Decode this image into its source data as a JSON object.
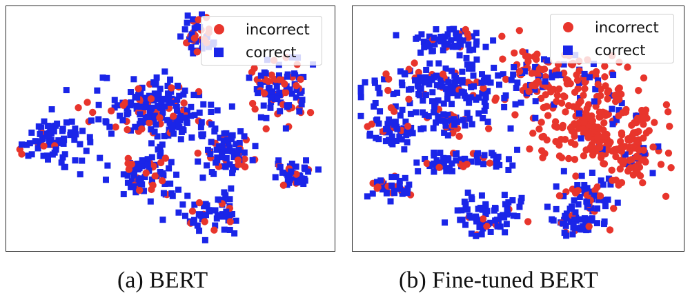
{
  "colors": {
    "incorrect": "#e8352c",
    "correct": "#1a25e8"
  },
  "chart_data": [
    {
      "type": "scatter",
      "title": "",
      "caption": "(a) BERT",
      "legend": {
        "placement": "top-right",
        "entries": [
          {
            "label": "incorrect",
            "marker": "circle",
            "color": "#e8352c"
          },
          {
            "label": "correct",
            "marker": "square",
            "color": "#1a25e8"
          }
        ]
      },
      "grid": false,
      "axes_visible": false,
      "xlim": [
        0,
        100
      ],
      "ylim": [
        0,
        100
      ],
      "clusters": [
        {
          "cx": 59,
          "cy": 90,
          "sx": 2.5,
          "sy": 4.5,
          "n": 45,
          "incorrect_frac": 0.45
        },
        {
          "cx": 45,
          "cy": 57,
          "sx": 9,
          "sy": 7,
          "n": 190,
          "incorrect_frac": 0.22
        },
        {
          "cx": 85,
          "cy": 66,
          "sx": 5,
          "sy": 7,
          "n": 100,
          "incorrect_frac": 0.38
        },
        {
          "cx": 13,
          "cy": 43,
          "sx": 5,
          "sy": 6,
          "n": 80,
          "incorrect_frac": 0.15
        },
        {
          "cx": 42,
          "cy": 30,
          "sx": 5,
          "sy": 5,
          "n": 80,
          "incorrect_frac": 0.3
        },
        {
          "cx": 68,
          "cy": 39,
          "sx": 4.5,
          "sy": 6,
          "n": 75,
          "incorrect_frac": 0.2
        },
        {
          "cx": 90,
          "cy": 30,
          "sx": 3.5,
          "sy": 3,
          "n": 45,
          "incorrect_frac": 0.25
        },
        {
          "cx": 62,
          "cy": 12,
          "sx": 4.5,
          "sy": 5,
          "n": 60,
          "incorrect_frac": 0.15
        }
      ]
    },
    {
      "type": "scatter",
      "title": "",
      "caption": "(b) Fine-tuned BERT",
      "legend": {
        "placement": "top-right",
        "entries": [
          {
            "label": "incorrect",
            "marker": "circle",
            "color": "#e8352c"
          },
          {
            "label": "correct",
            "marker": "square",
            "color": "#1a25e8"
          }
        ]
      },
      "grid": false,
      "axes_visible": false,
      "xlim": [
        0,
        100
      ],
      "ylim": [
        0,
        100
      ],
      "clusters": [
        {
          "cx": 29,
          "cy": 88,
          "sx": 6,
          "sy": 3,
          "n": 60,
          "incorrect_frac": 0.15
        },
        {
          "cx": 28,
          "cy": 68,
          "sx": 13,
          "sy": 5,
          "n": 160,
          "incorrect_frac": 0.1
        },
        {
          "cx": 61,
          "cy": 72,
          "sx": 9,
          "sy": 6,
          "n": 110,
          "incorrect_frac": 0.75
        },
        {
          "cx": 72,
          "cy": 52,
          "sx": 11,
          "sy": 11,
          "n": 220,
          "incorrect_frac": 0.88
        },
        {
          "cx": 86,
          "cy": 40,
          "sx": 4,
          "sy": 6,
          "n": 60,
          "incorrect_frac": 0.85
        },
        {
          "cx": 28,
          "cy": 53,
          "sx": 6,
          "sy": 2.5,
          "n": 55,
          "incorrect_frac": 0.2
        },
        {
          "cx": 11,
          "cy": 49,
          "sx": 4,
          "sy": 4,
          "n": 55,
          "incorrect_frac": 0.1
        },
        {
          "cx": 33,
          "cy": 36,
          "sx": 8,
          "sy": 2.5,
          "n": 60,
          "incorrect_frac": 0.2
        },
        {
          "cx": 10,
          "cy": 24,
          "sx": 3.5,
          "sy": 3,
          "n": 40,
          "incorrect_frac": 0.3
        },
        {
          "cx": 39,
          "cy": 12,
          "sx": 6,
          "sy": 4.5,
          "n": 70,
          "incorrect_frac": 0.1
        },
        {
          "cx": 72,
          "cy": 20,
          "sx": 5,
          "sy": 4.5,
          "n": 60,
          "incorrect_frac": 0.25
        },
        {
          "cx": 68,
          "cy": 8,
          "sx": 4,
          "sy": 2.5,
          "n": 40,
          "incorrect_frac": 0.15
        }
      ]
    }
  ]
}
